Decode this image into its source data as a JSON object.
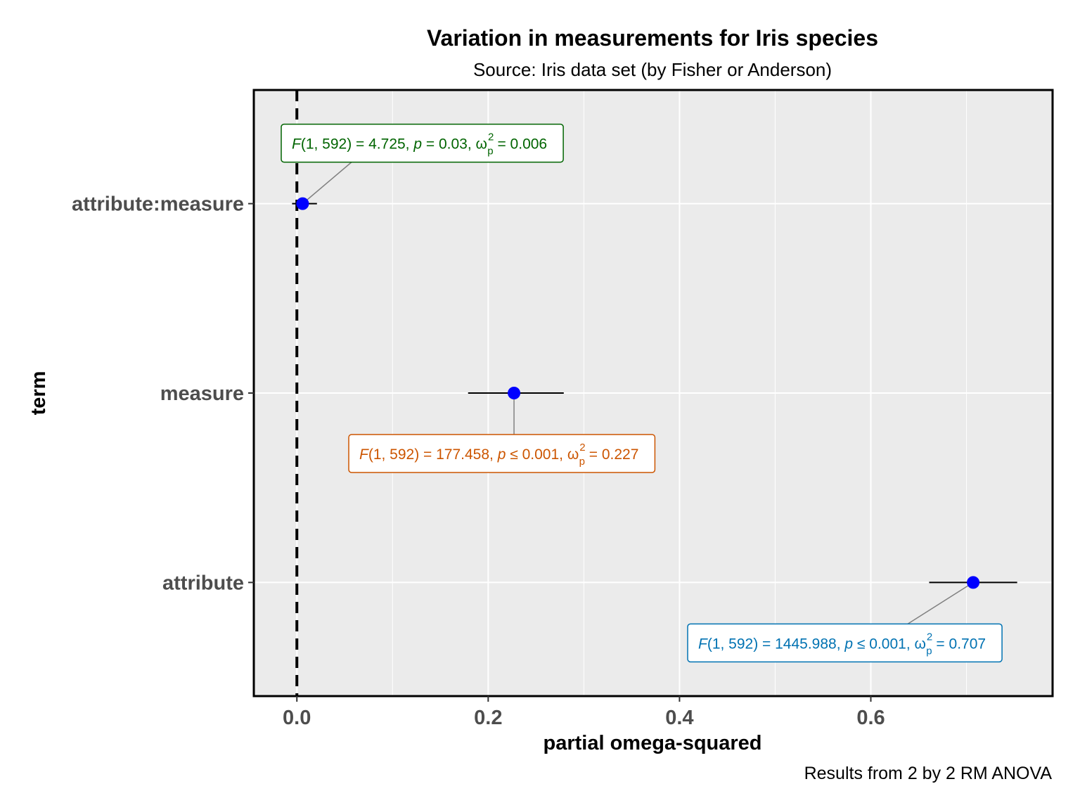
{
  "chart_data": {
    "type": "forest",
    "title": "Variation in measurements for Iris species",
    "subtitle": "Source: Iris data set (by Fisher or Anderson)",
    "caption": "Results from 2 by 2 RM ANOVA",
    "xlabel": "partial omega-squared",
    "ylabel": "term",
    "xlim": [
      -0.045,
      0.79
    ],
    "xticks": [
      0.0,
      0.2,
      0.4,
      0.6
    ],
    "xtick_labels": [
      "0.0",
      "0.2",
      "0.4",
      "0.6"
    ],
    "grid": true,
    "reference_line": {
      "x": 0,
      "style": "dashed"
    },
    "point_color": "#0000FF",
    "terms": [
      {
        "term": "attribute:measure",
        "estimate": 0.006,
        "conf_low": -0.005,
        "conf_high": 0.021,
        "color": "#006400",
        "label": {
          "F": "F",
          "df": "(1, 592)",
          "Fval": "4.725",
          "p": "p",
          "prel": "=",
          "pval": "0.03",
          "omega": "ω",
          "sub": "p",
          "sup": "2",
          "est": "0.006"
        }
      },
      {
        "term": "measure",
        "estimate": 0.227,
        "conf_low": 0.179,
        "conf_high": 0.279,
        "color": "#CC5500",
        "label": {
          "F": "F",
          "df": "(1, 592)",
          "Fval": "177.458",
          "p": "p",
          "prel": "≤",
          "pval": "0.001",
          "omega": "ω",
          "sub": "p",
          "sup": "2",
          "est": "0.227"
        }
      },
      {
        "term": "attribute",
        "estimate": 0.707,
        "conf_low": 0.661,
        "conf_high": 0.753,
        "color": "#0072B2",
        "label": {
          "F": "F",
          "df": "(1, 592)",
          "Fval": "1445.988",
          "p": "p",
          "prel": "≤",
          "pval": "0.001",
          "omega": "ω",
          "sub": "p",
          "sup": "2",
          "est": "0.707"
        }
      }
    ]
  }
}
